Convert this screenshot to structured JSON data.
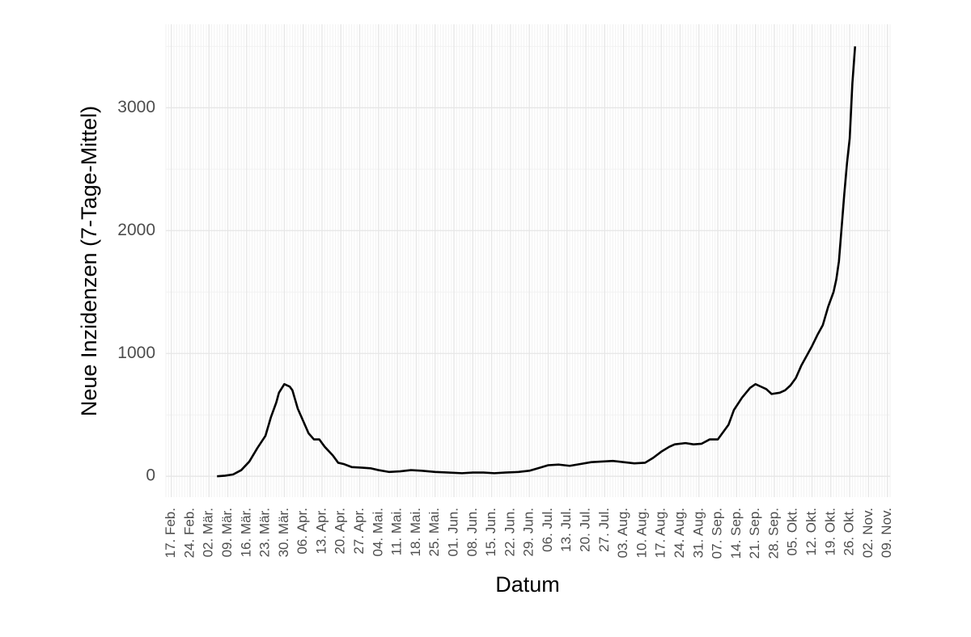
{
  "chart_data": {
    "type": "line",
    "xlabel": "Datum",
    "ylabel": "Neue Inzidenzen (7-Tage-Mittel)",
    "xlim": [
      "02-15",
      "11-10"
    ],
    "ylim": [
      -170,
      3680
    ],
    "yticks": [
      0,
      1000,
      2000,
      3000
    ],
    "xticks": [
      {
        "value": "02-17",
        "label": "17. Feb."
      },
      {
        "value": "02-24",
        "label": "24. Feb."
      },
      {
        "value": "03-02",
        "label": "02. Mär."
      },
      {
        "value": "03-09",
        "label": "09. Mär."
      },
      {
        "value": "03-16",
        "label": "16. Mär."
      },
      {
        "value": "03-23",
        "label": "23. Mär."
      },
      {
        "value": "03-30",
        "label": "30. Mär."
      },
      {
        "value": "04-06",
        "label": "06. Apr."
      },
      {
        "value": "04-13",
        "label": "13. Apr."
      },
      {
        "value": "04-20",
        "label": "20. Apr."
      },
      {
        "value": "04-27",
        "label": "27. Apr."
      },
      {
        "value": "05-04",
        "label": "04. Mai."
      },
      {
        "value": "05-11",
        "label": "11. Mai."
      },
      {
        "value": "05-18",
        "label": "18. Mai."
      },
      {
        "value": "05-25",
        "label": "25. Mai."
      },
      {
        "value": "06-01",
        "label": "01. Jun."
      },
      {
        "value": "06-08",
        "label": "08. Jun."
      },
      {
        "value": "06-15",
        "label": "15. Jun."
      },
      {
        "value": "06-22",
        "label": "22. Jun."
      },
      {
        "value": "06-29",
        "label": "29. Jun."
      },
      {
        "value": "07-06",
        "label": "06. Jul."
      },
      {
        "value": "07-13",
        "label": "13. Jul."
      },
      {
        "value": "07-20",
        "label": "20. Jul."
      },
      {
        "value": "07-27",
        "label": "27. Jul."
      },
      {
        "value": "08-03",
        "label": "03. Aug."
      },
      {
        "value": "08-10",
        "label": "10. Aug."
      },
      {
        "value": "08-17",
        "label": "17. Aug."
      },
      {
        "value": "08-24",
        "label": "24. Aug."
      },
      {
        "value": "08-31",
        "label": "31. Aug."
      },
      {
        "value": "09-07",
        "label": "07. Sep."
      },
      {
        "value": "09-14",
        "label": "14. Sep."
      },
      {
        "value": "09-21",
        "label": "21. Sep."
      },
      {
        "value": "09-28",
        "label": "28. Sep."
      },
      {
        "value": "10-05",
        "label": "05. Okt."
      },
      {
        "value": "10-12",
        "label": "12. Okt."
      },
      {
        "value": "10-19",
        "label": "19. Okt."
      },
      {
        "value": "10-26",
        "label": "26. Okt."
      },
      {
        "value": "11-02",
        "label": "02. Nov."
      },
      {
        "value": "11-09",
        "label": "09. Nov."
      }
    ],
    "grid": true,
    "x": [
      "03-05",
      "03-08",
      "03-11",
      "03-14",
      "03-17",
      "03-20",
      "03-23",
      "03-25",
      "03-27",
      "03-28",
      "03-30",
      "04-01",
      "04-02",
      "04-04",
      "04-06",
      "04-08",
      "04-10",
      "04-12",
      "04-14",
      "04-17",
      "04-19",
      "04-21",
      "04-24",
      "04-28",
      "05-01",
      "05-04",
      "05-08",
      "05-12",
      "05-16",
      "05-20",
      "05-25",
      "05-30",
      "06-04",
      "06-08",
      "06-12",
      "06-16",
      "06-20",
      "06-25",
      "06-29",
      "07-03",
      "07-06",
      "07-10",
      "07-14",
      "07-18",
      "07-22",
      "07-26",
      "07-30",
      "08-03",
      "08-07",
      "08-11",
      "08-14",
      "08-17",
      "08-20",
      "08-22",
      "08-26",
      "08-29",
      "09-01",
      "09-04",
      "09-07",
      "09-09",
      "09-11",
      "09-13",
      "09-16",
      "09-19",
      "09-21",
      "09-23",
      "09-25",
      "09-27",
      "09-30",
      "10-02",
      "10-04",
      "10-06",
      "10-08",
      "10-10",
      "10-12",
      "10-14",
      "10-16",
      "10-18",
      "10-20",
      "10-21",
      "10-22",
      "10-24",
      "10-25",
      "10-26",
      "10-27",
      "10-28"
    ],
    "series": [
      {
        "color": "#000000",
        "values": [
          0,
          5,
          15,
          50,
          120,
          230,
          330,
          480,
          600,
          680,
          750,
          730,
          700,
          550,
          450,
          350,
          300,
          300,
          240,
          170,
          110,
          100,
          75,
          70,
          65,
          50,
          35,
          40,
          50,
          45,
          35,
          30,
          25,
          30,
          30,
          25,
          30,
          35,
          45,
          70,
          90,
          95,
          85,
          100,
          115,
          120,
          125,
          115,
          105,
          110,
          150,
          200,
          240,
          260,
          270,
          260,
          265,
          300,
          300,
          360,
          420,
          540,
          640,
          720,
          750,
          730,
          710,
          670,
          680,
          700,
          740,
          800,
          900,
          980,
          1060,
          1150,
          1230,
          1380,
          1500,
          1600,
          1750,
          2300,
          2550,
          2750,
          3200,
          3500
        ]
      }
    ]
  }
}
